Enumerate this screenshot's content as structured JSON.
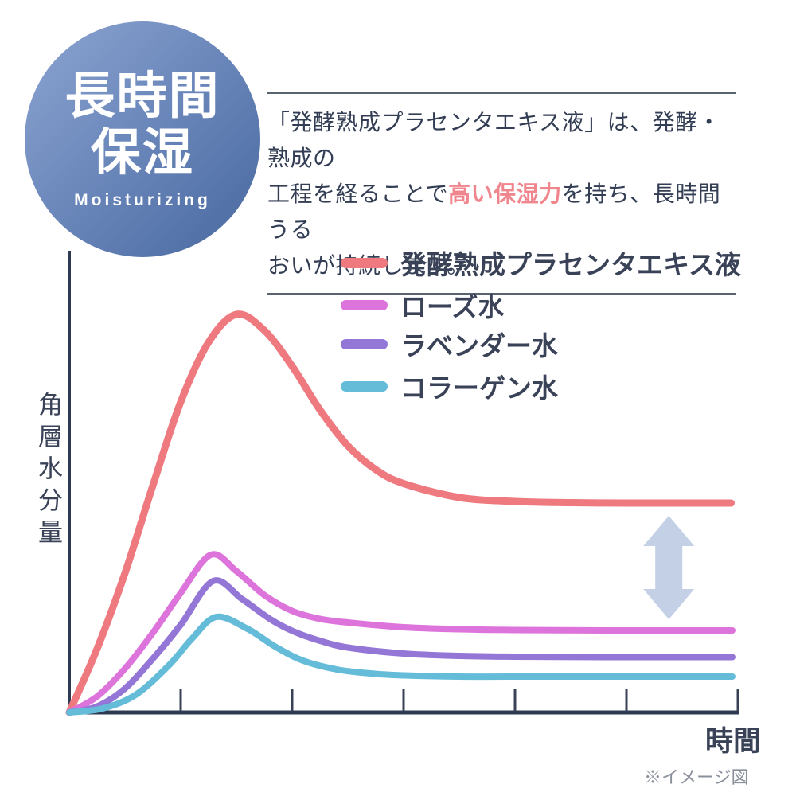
{
  "badge": {
    "title_line1": "長時間",
    "title_line2": "保湿",
    "subtitle": "Moisturizing"
  },
  "description": {
    "line1": "「発酵熟成プラセンタエキス液」は、発酵・熟成の",
    "line2_pre": "工程を経ることで",
    "line2_highlight": "高い保湿力",
    "line2_post": "を持ち、長時間うる",
    "line3": "おいが持続します。"
  },
  "footnote": "※イメージ図",
  "colors": {
    "text": "#333E54",
    "highlight": "#F0868D",
    "axis": "#2E3A52",
    "tick": "#3A4257",
    "arrow": "#C3D0E5",
    "divider": "#5A6370",
    "footnote_gray": "#8A909B",
    "badge_gradient_start": "#8CA4D1",
    "badge_gradient_end": "#47689F"
  },
  "chart_data": {
    "type": "line",
    "title": "",
    "xlabel": "時間",
    "ylabel": "角層水分量",
    "legend_position": "top-right",
    "x_axis": {
      "range": [
        0,
        6
      ],
      "ticks": [
        1,
        2,
        3,
        4,
        5,
        6
      ],
      "unit": "time (qualitative, no numeric labels)"
    },
    "y_axis": {
      "range": [
        0,
        110
      ],
      "unit": "relative stratum corneum moisture (no numeric labels)",
      "gridlines": false
    },
    "annotation": {
      "type": "double-headed-arrow",
      "x": 5.38,
      "between_series": [
        0,
        1
      ],
      "meaning": "persistent moisture gap vs. other waters"
    },
    "series": [
      {
        "name": "発酵熟成プラセンタエキス液",
        "color": "#EE7A80",
        "peak": {
          "x": 1.5,
          "y": 100
        },
        "plateau": 52.6,
        "points": [
          [
            0,
            0
          ],
          [
            0.25,
            16
          ],
          [
            0.5,
            35
          ],
          [
            0.75,
            57
          ],
          [
            1.0,
            78
          ],
          [
            1.25,
            93
          ],
          [
            1.5,
            100
          ],
          [
            1.75,
            96
          ],
          [
            2.0,
            87
          ],
          [
            2.25,
            76
          ],
          [
            2.5,
            67
          ],
          [
            2.75,
            61
          ],
          [
            3.0,
            57.5
          ],
          [
            3.5,
            54
          ],
          [
            4.0,
            53
          ],
          [
            4.5,
            52.7
          ],
          [
            5.0,
            52.6
          ],
          [
            5.5,
            52.6
          ],
          [
            5.94,
            52.6
          ]
        ]
      },
      {
        "name": "ローズ水",
        "color": "#DD74DC",
        "peak": {
          "x": 1.27,
          "y": 39.6
        },
        "plateau": 20.6,
        "points": [
          [
            0,
            0
          ],
          [
            0.25,
            4
          ],
          [
            0.5,
            11
          ],
          [
            0.75,
            20
          ],
          [
            1.0,
            30
          ],
          [
            1.27,
            39.6
          ],
          [
            1.5,
            35.5
          ],
          [
            1.75,
            29.5
          ],
          [
            2.0,
            25.5
          ],
          [
            2.25,
            23.5
          ],
          [
            2.5,
            22.6
          ],
          [
            3.0,
            21.4
          ],
          [
            3.5,
            20.9
          ],
          [
            4.0,
            20.7
          ],
          [
            5.0,
            20.6
          ],
          [
            5.95,
            20.6
          ]
        ]
      },
      {
        "name": "ラベンダー水",
        "color": "#9376D6",
        "peak": {
          "x": 1.29,
          "y": 33
        },
        "plateau": 13.9,
        "points": [
          [
            0,
            0
          ],
          [
            0.25,
            1.5
          ],
          [
            0.5,
            6
          ],
          [
            0.75,
            13.5
          ],
          [
            1.0,
            22
          ],
          [
            1.29,
            33
          ],
          [
            1.55,
            28.5
          ],
          [
            1.8,
            23.5
          ],
          [
            2.0,
            20.5
          ],
          [
            2.25,
            18
          ],
          [
            2.5,
            16.3
          ],
          [
            3.0,
            14.8
          ],
          [
            3.5,
            14.2
          ],
          [
            4.0,
            14
          ],
          [
            5.0,
            13.9
          ],
          [
            5.95,
            13.9
          ]
        ]
      },
      {
        "name": "コラーゲン水",
        "color": "#64BCD9",
        "peak": {
          "x": 1.32,
          "y": 24
        },
        "plateau": 9,
        "points": [
          [
            0,
            0
          ],
          [
            0.3,
            1
          ],
          [
            0.6,
            4.5
          ],
          [
            0.9,
            12
          ],
          [
            1.1,
            18.5
          ],
          [
            1.32,
            24
          ],
          [
            1.6,
            21
          ],
          [
            1.85,
            16.5
          ],
          [
            2.1,
            13
          ],
          [
            2.4,
            10.8
          ],
          [
            2.7,
            9.8
          ],
          [
            3.0,
            9.3
          ],
          [
            3.5,
            9
          ],
          [
            4.0,
            9
          ],
          [
            5.0,
            9
          ],
          [
            5.95,
            9
          ]
        ]
      }
    ]
  }
}
